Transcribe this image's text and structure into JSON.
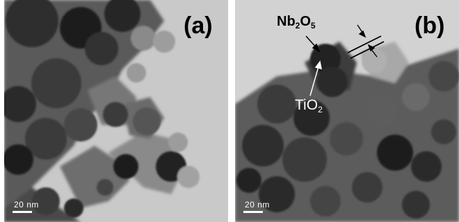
{
  "panels": [
    {
      "label": "(a)",
      "scale_bar": {
        "value": "20",
        "unit": "nm"
      }
    },
    {
      "label": "(b)",
      "scale_bar": {
        "value": "20",
        "unit": "nm"
      },
      "annotations": {
        "nb2o5": {
          "base1": "Nb",
          "sub1": "2",
          "base2": "O",
          "sub2": "5"
        },
        "tio2": {
          "base1": "TiO",
          "sub1": "2"
        }
      }
    }
  ]
}
